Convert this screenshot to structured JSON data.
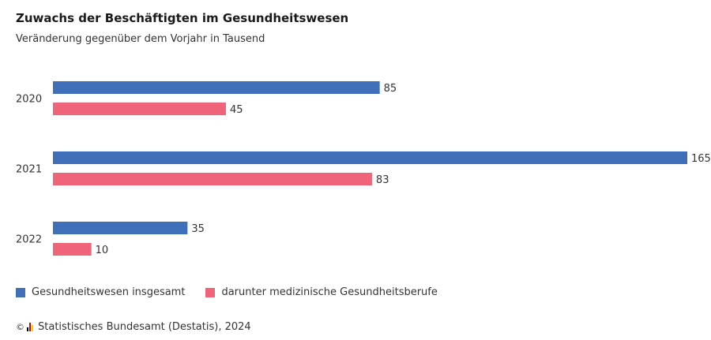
{
  "title": "Zuwachs der Beschäftigten im Gesundheitswesen",
  "subtitle": "Veränderung gegenüber dem Vorjahr in Tausend",
  "colors": {
    "series_total": "#3f6fb9",
    "series_medical": "#ef6479"
  },
  "chart_data": {
    "type": "bar",
    "orientation": "horizontal",
    "categories": [
      "2020",
      "2021",
      "2022"
    ],
    "series": [
      {
        "name": "Gesundheitswesen insgesamt",
        "values": [
          85,
          165,
          35
        ],
        "color": "#3f6fb9"
      },
      {
        "name": "darunter medizinische Gesundheitsberufe",
        "values": [
          45,
          83,
          10
        ],
        "color": "#ef6479"
      }
    ],
    "xlim": [
      0,
      165
    ],
    "grid": false,
    "legend_position": "bottom-left"
  },
  "legend": {
    "items": [
      {
        "label": "Gesundheitswesen insgesamt",
        "color": "#3f6fb9"
      },
      {
        "label": "darunter medizinische Gesundheitsberufe",
        "color": "#ef6479"
      }
    ]
  },
  "source": {
    "copyright_symbol": "©",
    "logo_icon": "destatis-logo-icon",
    "text": "Statistisches Bundesamt (Destatis), 2024"
  }
}
